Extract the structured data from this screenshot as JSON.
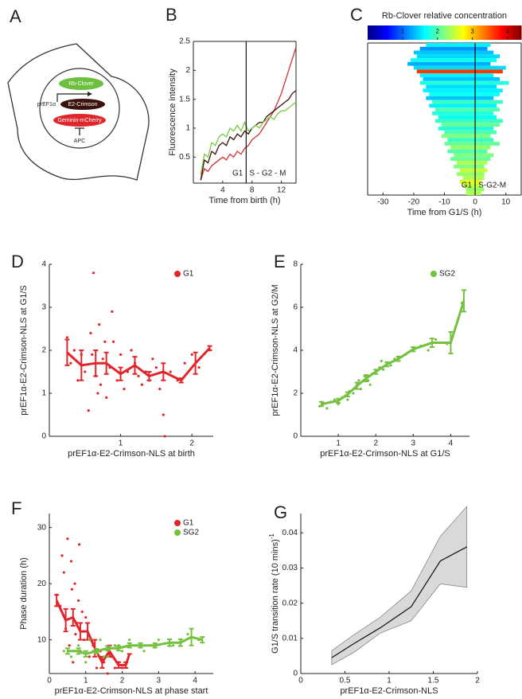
{
  "panel_a": {
    "panel": "A",
    "labels": {
      "reporter": "Rb-Clover",
      "promoter": "prEF1α",
      "crimson": "E2-Crimson",
      "geminin": "Geminin-mCherry",
      "apc": "APC"
    }
  },
  "chart_data": [
    {
      "type": "line",
      "panel": "B",
      "xlabel": "Time from birth (h)",
      "ylabel": "Fluorescence intensity",
      "annotations": [
        "G1",
        "S - G2 - M"
      ],
      "divider_x": 7.2,
      "xlim": [
        0,
        14
      ],
      "ylim": [
        0.05,
        2.5
      ],
      "xticks": [
        4,
        8,
        12
      ],
      "yticks": [
        0.5,
        1,
        1.5,
        2,
        2.5
      ],
      "x": [
        1,
        1.5,
        2,
        2.5,
        3,
        3.5,
        4,
        4.5,
        5,
        5.5,
        6,
        6.5,
        7,
        7.5,
        8,
        8.5,
        9,
        9.5,
        10,
        10.5,
        11,
        11.5,
        12,
        12.5,
        13,
        13.5,
        14
      ],
      "series": [
        {
          "color": "#d42f33",
          "values": [
            0.1,
            0.3,
            0.25,
            0.35,
            0.4,
            0.45,
            0.5,
            0.45,
            0.55,
            0.5,
            0.6,
            0.55,
            0.65,
            0.7,
            0.8,
            0.85,
            0.9,
            1.0,
            1.1,
            1.2,
            1.3,
            1.45,
            1.6,
            1.8,
            2.0,
            2.2,
            2.4
          ]
        },
        {
          "color": "#3a120c",
          "values": [
            0.1,
            0.45,
            0.4,
            0.6,
            0.55,
            0.7,
            0.75,
            0.7,
            0.85,
            0.8,
            0.9,
            0.85,
            0.95,
            0.9,
            1.0,
            1.05,
            1.1,
            1.1,
            1.2,
            1.25,
            1.3,
            1.35,
            1.4,
            1.45,
            1.5,
            1.6,
            1.65
          ]
        },
        {
          "color": "#7ac943",
          "values": [
            0.2,
            0.55,
            0.5,
            0.75,
            0.7,
            0.85,
            0.9,
            0.85,
            1.0,
            0.95,
            1.05,
            0.95,
            1.1,
            0.95,
            1.0,
            1.05,
            1.0,
            1.1,
            1.15,
            1.2,
            1.15,
            1.25,
            1.3,
            1.3,
            1.35,
            1.4,
            1.45
          ]
        }
      ]
    },
    {
      "type": "heatmap",
      "panel": "C",
      "colorbar_title": "Rb-Clover relative concentration",
      "xlabel": "Time from G1/S (h)",
      "annotations": [
        "G1",
        "S-G2-M"
      ],
      "divider_x": 0,
      "colormap": "jet",
      "xlim": [
        -35,
        15
      ],
      "xticks": [
        -30,
        -20,
        -10,
        0,
        10
      ],
      "clim": [
        0,
        4.4
      ],
      "cticks": [
        1,
        2,
        3,
        4
      ],
      "rows": [
        [
          -16,
          5,
          1.6
        ],
        [
          -18,
          4,
          1.2
        ],
        [
          -20,
          6,
          1.4
        ],
        [
          -19,
          8,
          1.5
        ],
        [
          -21,
          7,
          1.7
        ],
        [
          -22,
          5,
          1.3
        ],
        [
          -20,
          10,
          1.5
        ],
        [
          -19,
          9,
          3.6
        ],
        [
          -18,
          6,
          1.6
        ],
        [
          -17,
          8,
          1.4
        ],
        [
          -18,
          11,
          1.8
        ],
        [
          -16,
          7,
          1.5
        ],
        [
          -17,
          9,
          1.6
        ],
        [
          -15,
          8,
          1.7
        ],
        [
          -16,
          6,
          1.4
        ],
        [
          -14,
          9,
          1.9
        ],
        [
          -15,
          7,
          1.6
        ],
        [
          -13,
          8,
          2.0
        ],
        [
          -14,
          6,
          1.8
        ],
        [
          -12,
          7,
          1.7
        ],
        [
          -13,
          9,
          1.9
        ],
        [
          -11,
          8,
          2.1
        ],
        [
          -12,
          6,
          1.8
        ],
        [
          -10,
          7,
          2.0
        ],
        [
          -11,
          5,
          2.2
        ],
        [
          -9,
          6,
          1.9
        ],
        [
          -10,
          8,
          2.1
        ],
        [
          -8,
          5,
          2.3
        ],
        [
          -9,
          4,
          2.0
        ],
        [
          -7,
          6,
          2.2
        ],
        [
          -8,
          5,
          2.1
        ],
        [
          -6,
          4,
          2.4
        ],
        [
          -7,
          3,
          2.2
        ],
        [
          -5,
          4,
          2.5
        ],
        [
          -6,
          3,
          2.3
        ],
        [
          -4,
          3,
          2.4
        ],
        [
          -5,
          2,
          2.6
        ],
        [
          -4,
          2,
          2.5
        ],
        [
          -3,
          3,
          2.3
        ],
        [
          -3,
          2,
          2.4
        ]
      ]
    },
    {
      "type": "scatter",
      "panel": "D",
      "xlabel": "prEF1α-E2-Crimson-NLS at birth",
      "ylabel": "prEF1α-E2-Crimson-NLS at G1/S",
      "xlim": [
        0,
        2.3
      ],
      "ylim": [
        0,
        4
      ],
      "xticks": [
        1,
        2
      ],
      "yticks": [
        0,
        1,
        2,
        3,
        4
      ],
      "series": [
        {
          "name": "G1",
          "color": "#e0262b",
          "x": [
            0.25,
            0.3,
            0.35,
            0.4,
            0.45,
            0.5,
            0.55,
            0.6,
            0.62,
            0.65,
            0.7,
            0.72,
            0.75,
            0.8,
            0.85,
            0.9,
            0.95,
            1.0,
            1.05,
            1.1,
            1.15,
            1.2,
            1.25,
            1.3,
            1.35,
            1.4,
            1.45,
            1.5,
            1.55,
            1.6,
            1.7,
            1.8,
            1.9,
            2.0,
            2.1,
            0.58,
            0.68,
            0.78,
            0.88,
            1.62
          ],
          "values": [
            2.3,
            1.7,
            2.0,
            1.3,
            1.9,
            1.5,
            0.6,
            1.9,
            3.8,
            1.4,
            2.6,
            1.2,
            1.8,
            0.9,
            1.6,
            2.2,
            1.3,
            1.9,
            1.1,
            1.5,
            2.0,
            1.7,
            1.4,
            1.2,
            1.5,
            1.3,
            1.8,
            1.6,
            1.1,
            0.5,
            1.5,
            1.3,
            1.7,
            1.9,
            1.6,
            2.4,
            1.0,
            2.2,
            2.9,
            0.0
          ],
          "bins": {
            "x": [
              0.25,
              0.45,
              0.65,
              0.8,
              1.0,
              1.2,
              1.4,
              1.6,
              1.85,
              2.05,
              2.25
            ],
            "values": [
              1.95,
              1.65,
              1.7,
              1.7,
              1.45,
              1.65,
              1.4,
              1.5,
              1.3,
              1.7,
              2.05
            ],
            "errors": [
              0.3,
              0.35,
              0.3,
              0.25,
              0.15,
              0.2,
              0.1,
              0.2,
              0.05,
              0.25,
              0.05
            ]
          }
        }
      ]
    },
    {
      "type": "scatter",
      "panel": "E",
      "xlabel": "prEF1α-E2-Crimson-NLS at G1/S",
      "ylabel": "prEF1α-E2-Crimson-NLS at G2/M",
      "xlim": [
        0,
        4.5
      ],
      "ylim": [
        0,
        8
      ],
      "xticks": [
        1,
        2,
        3,
        4
      ],
      "yticks": [
        0,
        2,
        4,
        6,
        8
      ],
      "series": [
        {
          "name": "SG2",
          "color": "#74c140",
          "x": [
            0.5,
            0.6,
            0.7,
            0.8,
            0.9,
            1.0,
            1.1,
            1.2,
            1.3,
            1.4,
            1.5,
            1.6,
            1.7,
            1.8,
            1.9,
            2.0,
            2.1,
            2.2,
            2.3,
            2.4,
            2.5,
            2.6,
            2.8,
            3.0,
            3.2,
            3.4,
            3.6,
            3.9,
            4.3,
            1.25,
            1.55,
            1.85,
            2.15
          ],
          "values": [
            1.4,
            1.5,
            1.3,
            1.6,
            1.7,
            1.5,
            1.8,
            1.9,
            2.1,
            2.0,
            2.4,
            2.2,
            2.8,
            2.6,
            2.9,
            3.0,
            3.2,
            3.1,
            3.4,
            3.3,
            3.6,
            3.7,
            3.8,
            4.1,
            4.2,
            4.0,
            4.5,
            4.3,
            6.2,
            1.7,
            2.6,
            2.4,
            3.5
          ],
          "bins": {
            "x": [
              0.55,
              1.0,
              1.25,
              1.5,
              1.75,
              2.0,
              2.3,
              2.6,
              3.0,
              3.5,
              4.0,
              4.35
            ],
            "values": [
              1.5,
              1.65,
              1.95,
              2.35,
              2.7,
              3.0,
              3.35,
              3.6,
              4.05,
              4.35,
              4.35,
              6.3
            ],
            "errors": [
              0.1,
              0.1,
              0.1,
              0.15,
              0.15,
              0.1,
              0.1,
              0.1,
              0.1,
              0.2,
              0.5,
              0.5
            ]
          }
        }
      ]
    },
    {
      "type": "scatter",
      "panel": "F",
      "xlabel": "prEF1α-E2-Crimson-NLS at phase start",
      "ylabel": "Phase duration (h)",
      "xlim": [
        0,
        4.5
      ],
      "ylim": [
        4,
        32.5
      ],
      "xticks": [
        0,
        1,
        2,
        3,
        4
      ],
      "yticks": [
        10,
        20,
        30
      ],
      "series": [
        {
          "name": "G1",
          "color": "#e0262b",
          "x": [
            0.2,
            0.3,
            0.4,
            0.45,
            0.5,
            0.55,
            0.6,
            0.65,
            0.7,
            0.75,
            0.8,
            0.85,
            0.9,
            0.95,
            1.0,
            1.1,
            1.2,
            1.3,
            1.4,
            1.5,
            1.6,
            1.7,
            1.8,
            1.9,
            2.0,
            0.35,
            0.62,
            0.72,
            0.82
          ],
          "values": [
            18,
            16,
            22,
            12,
            28,
            9,
            24,
            6,
            20,
            13,
            17,
            8,
            15,
            10,
            14,
            7,
            9,
            5,
            8,
            6,
            4,
            7,
            5,
            6,
            5,
            25,
            19,
            11,
            27
          ],
          "bins": {
            "x": [
              0.2,
              0.45,
              0.65,
              0.85,
              1.05,
              1.25,
              1.45,
              1.65,
              1.9,
              2.1,
              2.2
            ],
            "values": [
              17,
              13.5,
              14,
              11.5,
              11.5,
              8.5,
              6,
              8,
              5.5,
              5.5,
              7.5
            ],
            "errors": [
              1,
              2,
              1.5,
              1.5,
              1.5,
              1.5,
              1,
              1,
              0.5,
              0.5,
              0
            ]
          }
        },
        {
          "name": "SG2",
          "color": "#74c140",
          "x": [
            0.4,
            0.6,
            0.8,
            1.0,
            1.2,
            1.4,
            1.6,
            1.8,
            2.0,
            2.2,
            2.4,
            2.6,
            2.8,
            3.0,
            3.4,
            3.8,
            4.1,
            0.7,
            1.1,
            1.5,
            1.9
          ],
          "values": [
            8,
            7,
            9,
            6,
            8,
            10,
            7,
            9,
            8,
            10,
            9,
            8,
            9,
            10,
            9,
            11,
            10,
            8,
            10,
            7,
            9
          ],
          "bins": {
            "x": [
              0.5,
              0.8,
              1.0,
              1.3,
              1.6,
              1.9,
              2.2,
              2.5,
              2.9,
              3.3,
              3.6,
              3.9,
              4.2
            ],
            "values": [
              8,
              8,
              7.5,
              8,
              8.5,
              8.5,
              9,
              9,
              9,
              9.5,
              9.5,
              10.5,
              10
            ],
            "errors": [
              0.5,
              0.5,
              0.5,
              0.4,
              0.4,
              0.4,
              0.4,
              0.4,
              0.4,
              0.6,
              0.6,
              1.5,
              0.5
            ]
          }
        }
      ]
    },
    {
      "type": "band",
      "panel": "G",
      "xlabel": "prEF1α-E2-Crimson-NLS",
      "ylabel": "G1/S transition rate (10 mins)",
      "ylabel_superscript": "-1",
      "xlim": [
        0,
        2
      ],
      "ylim": [
        0,
        0.0455
      ],
      "xticks": [
        0,
        0.5,
        1,
        1.5,
        2
      ],
      "yticks": [
        0,
        0.01,
        0.02,
        0.03,
        0.04
      ],
      "color": "#111111",
      "band_color": "#d9d9d9",
      "x": [
        0.35,
        0.6,
        0.9,
        1.25,
        1.58,
        1.88
      ],
      "values": [
        0.0045,
        0.0085,
        0.013,
        0.019,
        0.032,
        0.036
      ],
      "lower": [
        0.0025,
        0.006,
        0.0115,
        0.015,
        0.0255,
        0.0245
      ],
      "upper": [
        0.0065,
        0.011,
        0.016,
        0.0235,
        0.039,
        0.0475
      ]
    }
  ]
}
